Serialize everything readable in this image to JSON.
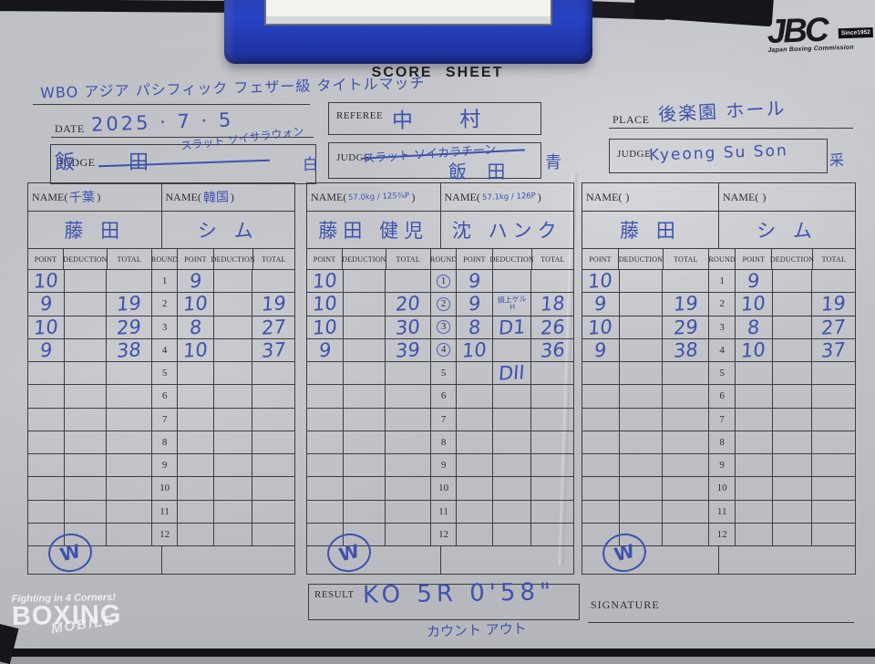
{
  "sheet": {
    "title": "SCORE SHEET"
  },
  "brand": {
    "name": "JBC",
    "since": "Since1952",
    "subtitle": "Japan Boxing Commission"
  },
  "watermark": {
    "line1": "Fighting in 4 Corners!",
    "line2": "BOXING",
    "line3": "MOBILE"
  },
  "header": {
    "match_title": "WBO アジア パシフィック フェザー級 タイトルマッチ",
    "date_label": "DATE",
    "date_value": "2025 · 7 · 5",
    "judge_label": "JUDGE",
    "referee_label": "REFEREE",
    "referee_value": "中 村",
    "place_label": "PLACE",
    "place_value": "後楽園 ホール",
    "judge_left": {
      "crossed_name": "飯 田",
      "replacement": "スラット ソイサラウォン",
      "corner_note": "白"
    },
    "judge_mid": {
      "crossed_name": "スラット ソイカラチーン",
      "replacement": "飯 田",
      "corner_note": "青"
    },
    "judge_right": {
      "value": "Kyeong Su Son",
      "corner_note": "采"
    }
  },
  "table_headers": {
    "name_open": "NAME(",
    "name_close": ")",
    "point": "POINT",
    "deduction": "DEDUCTION",
    "total": "TOTAL",
    "round": "ROUND"
  },
  "tables": [
    {
      "paren_left": "千葉",
      "paren_right": "韓国",
      "fighter_left": "藤 田",
      "fighter_right": "シ ム",
      "mark": "W",
      "rows": [
        {
          "round": "1",
          "lp": "10",
          "ld": "",
          "lt": "",
          "rp": "9",
          "rd": "",
          "rt": "",
          "circled": false
        },
        {
          "round": "2",
          "lp": "9",
          "ld": "",
          "lt": "19",
          "rp": "10",
          "rd": "",
          "rt": "19",
          "circled": false
        },
        {
          "round": "3",
          "lp": "10",
          "ld": "",
          "lt": "29",
          "rp": "8",
          "rd": "",
          "rt": "27",
          "circled": false
        },
        {
          "round": "4",
          "lp": "9",
          "ld": "",
          "lt": "38",
          "rp": "10",
          "rd": "",
          "rt": "37",
          "circled": false
        },
        {
          "round": "5",
          "lp": "",
          "ld": "",
          "lt": "",
          "rp": "",
          "rd": "",
          "rt": "",
          "circled": false
        },
        {
          "round": "6",
          "lp": "",
          "ld": "",
          "lt": "",
          "rp": "",
          "rd": "",
          "rt": "",
          "circled": false
        },
        {
          "round": "7",
          "lp": "",
          "ld": "",
          "lt": "",
          "rp": "",
          "rd": "",
          "rt": "",
          "circled": false
        },
        {
          "round": "8",
          "lp": "",
          "ld": "",
          "lt": "",
          "rp": "",
          "rd": "",
          "rt": "",
          "circled": false
        },
        {
          "round": "9",
          "lp": "",
          "ld": "",
          "lt": "",
          "rp": "",
          "rd": "",
          "rt": "",
          "circled": false
        },
        {
          "round": "10",
          "lp": "",
          "ld": "",
          "lt": "",
          "rp": "",
          "rd": "",
          "rt": "",
          "circled": false
        },
        {
          "round": "11",
          "lp": "",
          "ld": "",
          "lt": "",
          "rp": "",
          "rd": "",
          "rt": "",
          "circled": false
        },
        {
          "round": "12",
          "lp": "",
          "ld": "",
          "lt": "",
          "rp": "",
          "rd": "",
          "rt": "",
          "circled": false
        }
      ]
    },
    {
      "paren_left": "57.0kg / 125¾P",
      "paren_right": "57.1kg / 126P",
      "fighter_left": "藤田 健児",
      "fighter_right": "沈 ハンク",
      "mark": "W",
      "rows": [
        {
          "round": "1",
          "lp": "10",
          "ld": "",
          "lt": "",
          "rp": "9",
          "rd": "",
          "rt": "",
          "circled": true
        },
        {
          "round": "2",
          "lp": "10",
          "ld": "",
          "lt": "20",
          "rp": "9",
          "rd": "頭上ゲル\nH",
          "rt": "18",
          "circled": true
        },
        {
          "round": "3",
          "lp": "10",
          "ld": "",
          "lt": "30",
          "rp": "8",
          "rd": "D1",
          "rt": "26",
          "circled": true
        },
        {
          "round": "4",
          "lp": "9",
          "ld": "",
          "lt": "39",
          "rp": "10",
          "rd": "",
          "rt": "36",
          "circled": true
        },
        {
          "round": "5",
          "lp": "",
          "ld": "",
          "lt": "",
          "rp": "",
          "rd": "DII",
          "rt": "",
          "circled": false
        },
        {
          "round": "6",
          "lp": "",
          "ld": "",
          "lt": "",
          "rp": "",
          "rd": "",
          "rt": "",
          "circled": false
        },
        {
          "round": "7",
          "lp": "",
          "ld": "",
          "lt": "",
          "rp": "",
          "rd": "",
          "rt": "",
          "circled": false
        },
        {
          "round": "8",
          "lp": "",
          "ld": "",
          "lt": "",
          "rp": "",
          "rd": "",
          "rt": "",
          "circled": false
        },
        {
          "round": "9",
          "lp": "",
          "ld": "",
          "lt": "",
          "rp": "",
          "rd": "",
          "rt": "",
          "circled": false
        },
        {
          "round": "10",
          "lp": "",
          "ld": "",
          "lt": "",
          "rp": "",
          "rd": "",
          "rt": "",
          "circled": false
        },
        {
          "round": "11",
          "lp": "",
          "ld": "",
          "lt": "",
          "rp": "",
          "rd": "",
          "rt": "",
          "circled": false
        },
        {
          "round": "12",
          "lp": "",
          "ld": "",
          "lt": "",
          "rp": "",
          "rd": "",
          "rt": "",
          "circled": false
        }
      ]
    },
    {
      "paren_left": "",
      "paren_right": "",
      "fighter_left": "藤 田",
      "fighter_right": "シ ム",
      "mark": "W",
      "rows": [
        {
          "round": "1",
          "lp": "10",
          "ld": "",
          "lt": "",
          "rp": "9",
          "rd": "",
          "rt": "",
          "circled": false
        },
        {
          "round": "2",
          "lp": "9",
          "ld": "",
          "lt": "19",
          "rp": "10",
          "rd": "",
          "rt": "19",
          "circled": false
        },
        {
          "round": "3",
          "lp": "10",
          "ld": "",
          "lt": "29",
          "rp": "8",
          "rd": "",
          "rt": "27",
          "circled": false
        },
        {
          "round": "4",
          "lp": "9",
          "ld": "",
          "lt": "38",
          "rp": "10",
          "rd": "",
          "rt": "37",
          "circled": false
        },
        {
          "round": "5",
          "lp": "",
          "ld": "",
          "lt": "",
          "rp": "",
          "rd": "",
          "rt": "",
          "circled": false
        },
        {
          "round": "6",
          "lp": "",
          "ld": "",
          "lt": "",
          "rp": "",
          "rd": "",
          "rt": "",
          "circled": false
        },
        {
          "round": "7",
          "lp": "",
          "ld": "",
          "lt": "",
          "rp": "",
          "rd": "",
          "rt": "",
          "circled": false
        },
        {
          "round": "8",
          "lp": "",
          "ld": "",
          "lt": "",
          "rp": "",
          "rd": "",
          "rt": "",
          "circled": false
        },
        {
          "round": "9",
          "lp": "",
          "ld": "",
          "lt": "",
          "rp": "",
          "rd": "",
          "rt": "",
          "circled": false
        },
        {
          "round": "10",
          "lp": "",
          "ld": "",
          "lt": "",
          "rp": "",
          "rd": "",
          "rt": "",
          "circled": false
        },
        {
          "round": "11",
          "lp": "",
          "ld": "",
          "lt": "",
          "rp": "",
          "rd": "",
          "rt": "",
          "circled": false
        },
        {
          "round": "12",
          "lp": "",
          "ld": "",
          "lt": "",
          "rp": "",
          "rd": "",
          "rt": "",
          "circled": false
        }
      ]
    }
  ],
  "result": {
    "label": "RESULT",
    "value": "KO 5R 0'58\"",
    "note": "カウント アウト"
  },
  "signature": {
    "label": "SIGNATURE"
  }
}
